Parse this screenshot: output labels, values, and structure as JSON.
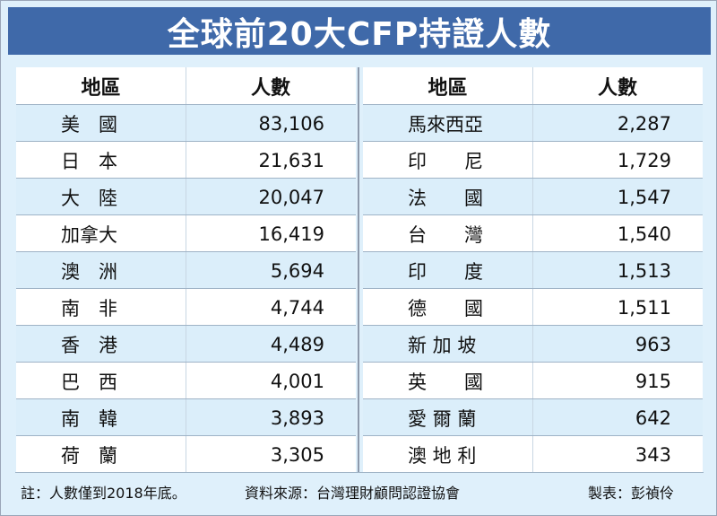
{
  "title": "全球前20大CFP持證人數",
  "left": {
    "header": {
      "region": "地區",
      "count": "人數"
    },
    "rows": [
      {
        "region": "美　國",
        "count": "83,106"
      },
      {
        "region": "日　本",
        "count": "21,631"
      },
      {
        "region": "大　陸",
        "count": "20,047"
      },
      {
        "region": "加拿大",
        "count": "16,419"
      },
      {
        "region": "澳　洲",
        "count": "5,694"
      },
      {
        "region": "南　非",
        "count": "4,744"
      },
      {
        "region": "香　港",
        "count": "4,489"
      },
      {
        "region": "巴　西",
        "count": "4,001"
      },
      {
        "region": "南　韓",
        "count": "3,893"
      },
      {
        "region": "荷　蘭",
        "count": "3,305"
      }
    ]
  },
  "right": {
    "header": {
      "region": "地區",
      "count": "人數"
    },
    "rows": [
      {
        "region": "馬來西亞",
        "count": "2,287"
      },
      {
        "region": "印　　尼",
        "count": "1,729"
      },
      {
        "region": "法　　國",
        "count": "1,547"
      },
      {
        "region": "台　　灣",
        "count": "1,540"
      },
      {
        "region": "印　　度",
        "count": "1,513"
      },
      {
        "region": "德　　國",
        "count": "1,511"
      },
      {
        "region": "新 加 坡",
        "count": "963"
      },
      {
        "region": "英　　國",
        "count": "915"
      },
      {
        "region": "愛 爾 蘭",
        "count": "642"
      },
      {
        "region": "澳 地 利",
        "count": "343"
      }
    ]
  },
  "footer": {
    "note": "註：人數僅到2018年底。",
    "source": "資料來源：台灣理財顧問認證協會",
    "credit": "製表：彭禎伶"
  },
  "colors": {
    "title_bar": "#3f69a9",
    "background": "#dff0fb",
    "row_white": "#ffffff",
    "row_blue": "#dbeefa"
  }
}
